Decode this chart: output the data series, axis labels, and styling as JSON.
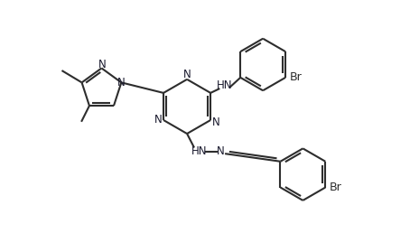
{
  "background": "#ffffff",
  "line_color": "#2d2d2d",
  "line_width": 1.5,
  "label_color": "#1a1a2e",
  "br_color": "#2d2d2d",
  "font_size": 8.5,
  "fig_width": 4.54,
  "fig_height": 2.58,
  "dpi": 100,
  "xlim": [
    0,
    9.5
  ],
  "ylim": [
    0,
    5.8
  ]
}
